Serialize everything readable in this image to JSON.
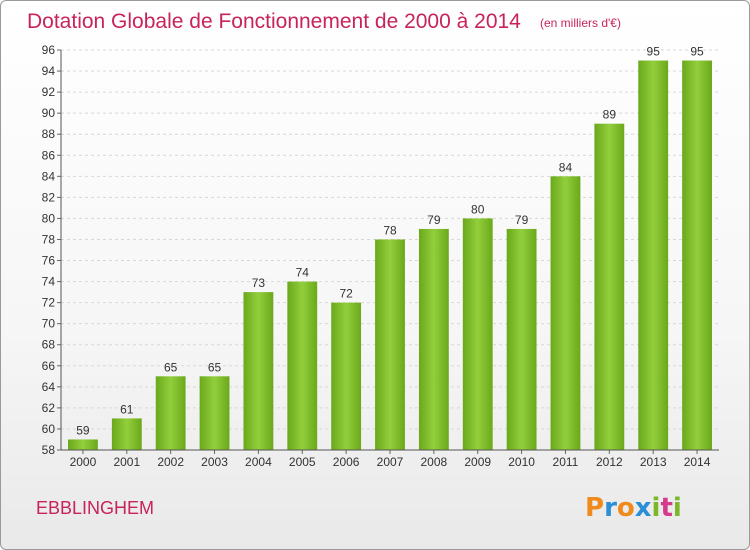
{
  "chart_data": {
    "type": "bar",
    "title": "Dotation Globale de Fonctionnement de 2000 à 2014",
    "subtitle": "(en milliers d'€)",
    "categories": [
      "2000",
      "2001",
      "2002",
      "2003",
      "2004",
      "2005",
      "2006",
      "2007",
      "2008",
      "2009",
      "2010",
      "2011",
      "2012",
      "2013",
      "2014"
    ],
    "values": [
      59,
      61,
      65,
      65,
      73,
      74,
      72,
      78,
      79,
      80,
      79,
      84,
      89,
      95,
      95
    ],
    "ylim": [
      58,
      96
    ],
    "ytick_step": 2,
    "grid": true,
    "bar_color": "#7fbf2a"
  },
  "commune": "EBBLINGHEM",
  "logo": {
    "letters": [
      "P",
      "r",
      "o",
      "x",
      "i",
      "t",
      "i"
    ],
    "colors": [
      "#f08a1c",
      "#2a8fd6",
      "#f08a1c",
      "#2a8fd6",
      "#7ab82a",
      "#d63a8a",
      "#7ab82a"
    ]
  }
}
